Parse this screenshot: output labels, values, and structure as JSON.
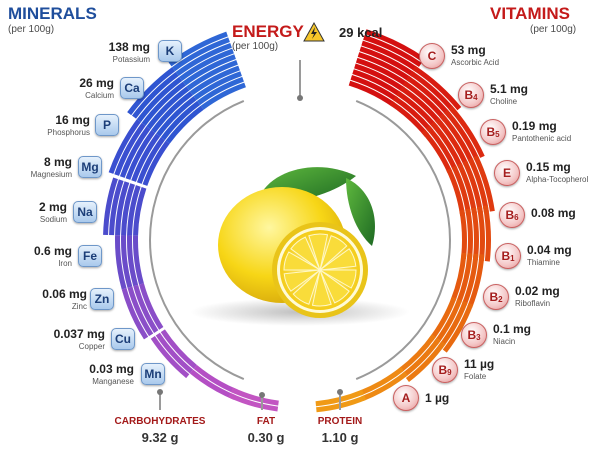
{
  "minerals": {
    "title": "MINERALS",
    "unit": "(per 100g)",
    "items": [
      {
        "amount": "138 mg",
        "name": "Potassium",
        "symbol": "K"
      },
      {
        "amount": "26 mg",
        "name": "Calcium",
        "symbol": "Ca"
      },
      {
        "amount": "16 mg",
        "name": "Phosphorus",
        "symbol": "P"
      },
      {
        "amount": "8 mg",
        "name": "Magnesium",
        "symbol": "Mg"
      },
      {
        "amount": "2 mg",
        "name": "Sodium",
        "symbol": "Na"
      },
      {
        "amount": "0.6 mg",
        "name": "Iron",
        "symbol": "Fe"
      },
      {
        "amount": "0.06 mg",
        "name": "Zinc",
        "symbol": "Zn"
      },
      {
        "amount": "0.037 mg",
        "name": "Copper",
        "symbol": "Cu"
      },
      {
        "amount": "0.03 mg",
        "name": "Manganese",
        "symbol": "Mn"
      }
    ]
  },
  "energy": {
    "title": "ENERGY",
    "unit": "(per 100g)",
    "value": "29 kcal"
  },
  "vitamins": {
    "title": "VITAMINS",
    "unit": "(per 100g)",
    "items": [
      {
        "amount": "53 mg",
        "name": "Ascorbic Acid",
        "letter": "C",
        "num": ""
      },
      {
        "amount": "5.1 mg",
        "name": "Choline",
        "letter": "B",
        "num": "4"
      },
      {
        "amount": "0.19 mg",
        "name": "Pantothenic acid",
        "letter": "B",
        "num": "5"
      },
      {
        "amount": "0.15 mg",
        "name": "Alpha-Tocopherol",
        "letter": "E",
        "num": ""
      },
      {
        "amount": "0.08 mg",
        "name": "",
        "letter": "B",
        "num": "6"
      },
      {
        "amount": "0.04 mg",
        "name": "Thiamine",
        "letter": "B",
        "num": "1"
      },
      {
        "amount": "0.02 mg",
        "name": "Riboflavin",
        "letter": "B",
        "num": "2"
      },
      {
        "amount": "0.1 mg",
        "name": "Niacin",
        "letter": "B",
        "num": "3"
      },
      {
        "amount": "11 µg",
        "name": "Folate",
        "letter": "B",
        "num": "9"
      },
      {
        "amount": "1 µg",
        "name": "",
        "letter": "A",
        "num": ""
      }
    ]
  },
  "nutrients": [
    {
      "label": "CARBOHYDRATES",
      "value": "9.32 g"
    },
    {
      "label": "FAT",
      "value": "0.30 g"
    },
    {
      "label": "PROTEIN",
      "value": "1.10 g"
    }
  ],
  "colors": {
    "minerals": "#1f4e9c",
    "vitamins": "#c41a1a",
    "energy": "#c41a1a"
  },
  "icons": {
    "energy": "lightning-icon"
  }
}
